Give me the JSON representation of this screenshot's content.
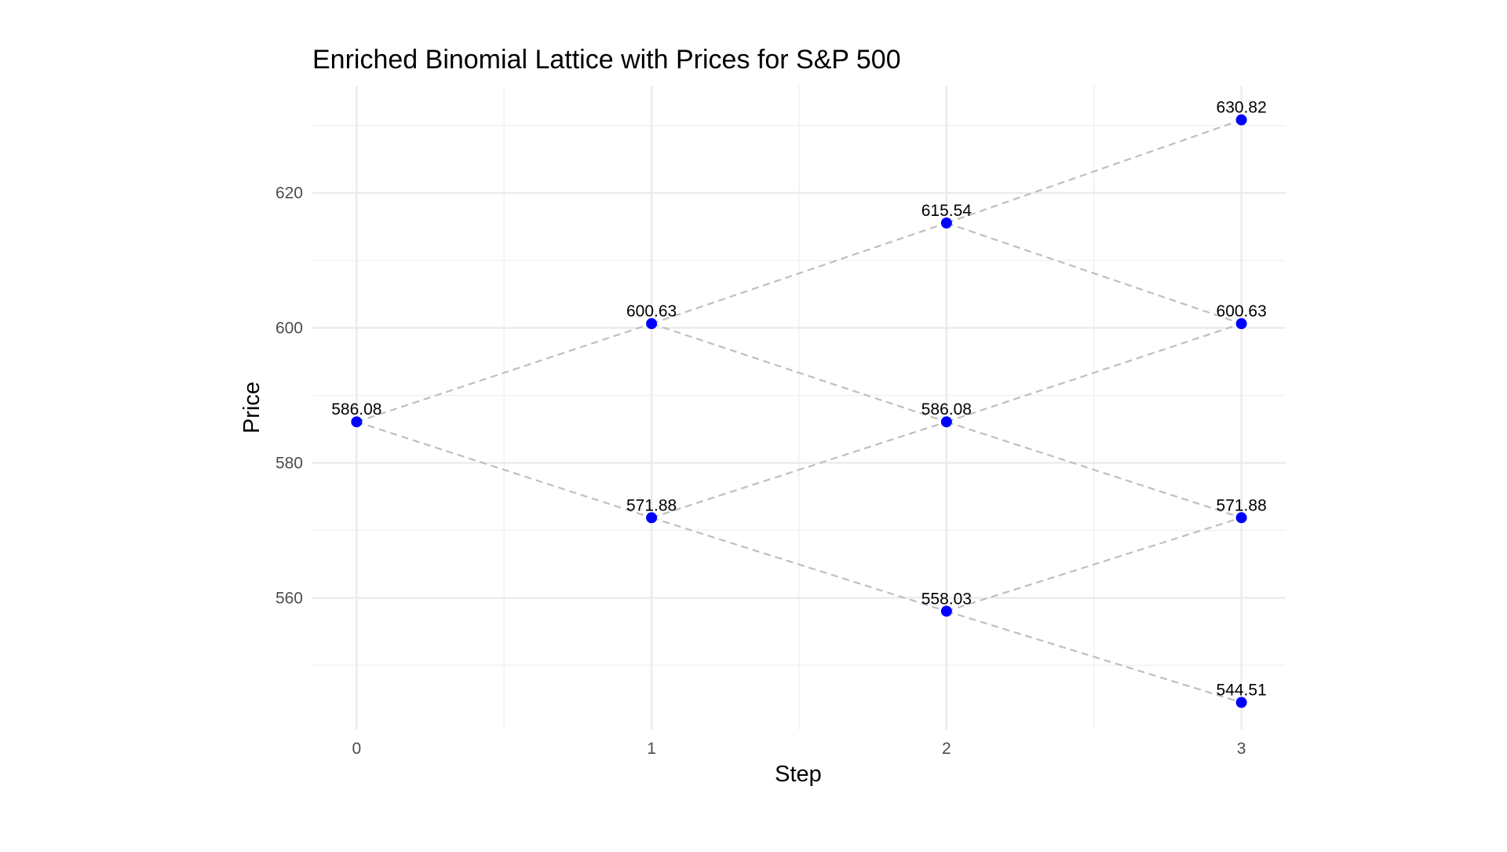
{
  "chart_data": {
    "type": "scatter",
    "title": "Enriched Binomial Lattice with Prices for S&P 500",
    "xlabel": "Step",
    "ylabel": "Price",
    "xlim": [
      -0.15,
      3.15
    ],
    "ylim": [
      540.5,
      635.9
    ],
    "x_ticks": [
      0,
      1,
      2,
      3
    ],
    "x_tick_labels": [
      "0",
      "1",
      "2",
      "3"
    ],
    "x_minor_ticks": [
      0.5,
      1.5,
      2.5
    ],
    "y_ticks": [
      560,
      580,
      600,
      620
    ],
    "y_tick_labels": [
      "560",
      "580",
      "600",
      "620"
    ],
    "y_minor_ticks": [
      550,
      570,
      590,
      610,
      630
    ],
    "grid": true,
    "legend": "none",
    "points": [
      {
        "step": 0,
        "price": 586.08,
        "label": "586.08"
      },
      {
        "step": 1,
        "price": 600.63,
        "label": "600.63"
      },
      {
        "step": 1,
        "price": 571.88,
        "label": "571.88"
      },
      {
        "step": 2,
        "price": 615.54,
        "label": "615.54"
      },
      {
        "step": 2,
        "price": 586.08,
        "label": "586.08"
      },
      {
        "step": 2,
        "price": 558.03,
        "label": "558.03"
      },
      {
        "step": 3,
        "price": 630.82,
        "label": "630.82"
      },
      {
        "step": 3,
        "price": 600.63,
        "label": "600.63"
      },
      {
        "step": 3,
        "price": 571.88,
        "label": "571.88"
      },
      {
        "step": 3,
        "price": 544.51,
        "label": "544.51"
      }
    ],
    "edges": [
      {
        "from": [
          0,
          586.08
        ],
        "to": [
          1,
          600.63
        ]
      },
      {
        "from": [
          0,
          586.08
        ],
        "to": [
          1,
          571.88
        ]
      },
      {
        "from": [
          1,
          600.63
        ],
        "to": [
          2,
          615.54
        ]
      },
      {
        "from": [
          1,
          600.63
        ],
        "to": [
          2,
          586.08
        ]
      },
      {
        "from": [
          1,
          571.88
        ],
        "to": [
          2,
          586.08
        ]
      },
      {
        "from": [
          1,
          571.88
        ],
        "to": [
          2,
          558.03
        ]
      },
      {
        "from": [
          2,
          615.54
        ],
        "to": [
          3,
          630.82
        ]
      },
      {
        "from": [
          2,
          615.54
        ],
        "to": [
          3,
          600.63
        ]
      },
      {
        "from": [
          2,
          586.08
        ],
        "to": [
          3,
          600.63
        ]
      },
      {
        "from": [
          2,
          586.08
        ],
        "to": [
          3,
          571.88
        ]
      },
      {
        "from": [
          2,
          558.03
        ],
        "to": [
          3,
          571.88
        ]
      },
      {
        "from": [
          2,
          558.03
        ],
        "to": [
          3,
          544.51
        ]
      }
    ],
    "colors": {
      "point": "#0000ff",
      "edge": "#bfbfbf",
      "major_grid": "#ebebeb",
      "minor_grid": "#f2f2f2",
      "tick_text": "#4d4d4d",
      "label_text": "#000000"
    }
  }
}
